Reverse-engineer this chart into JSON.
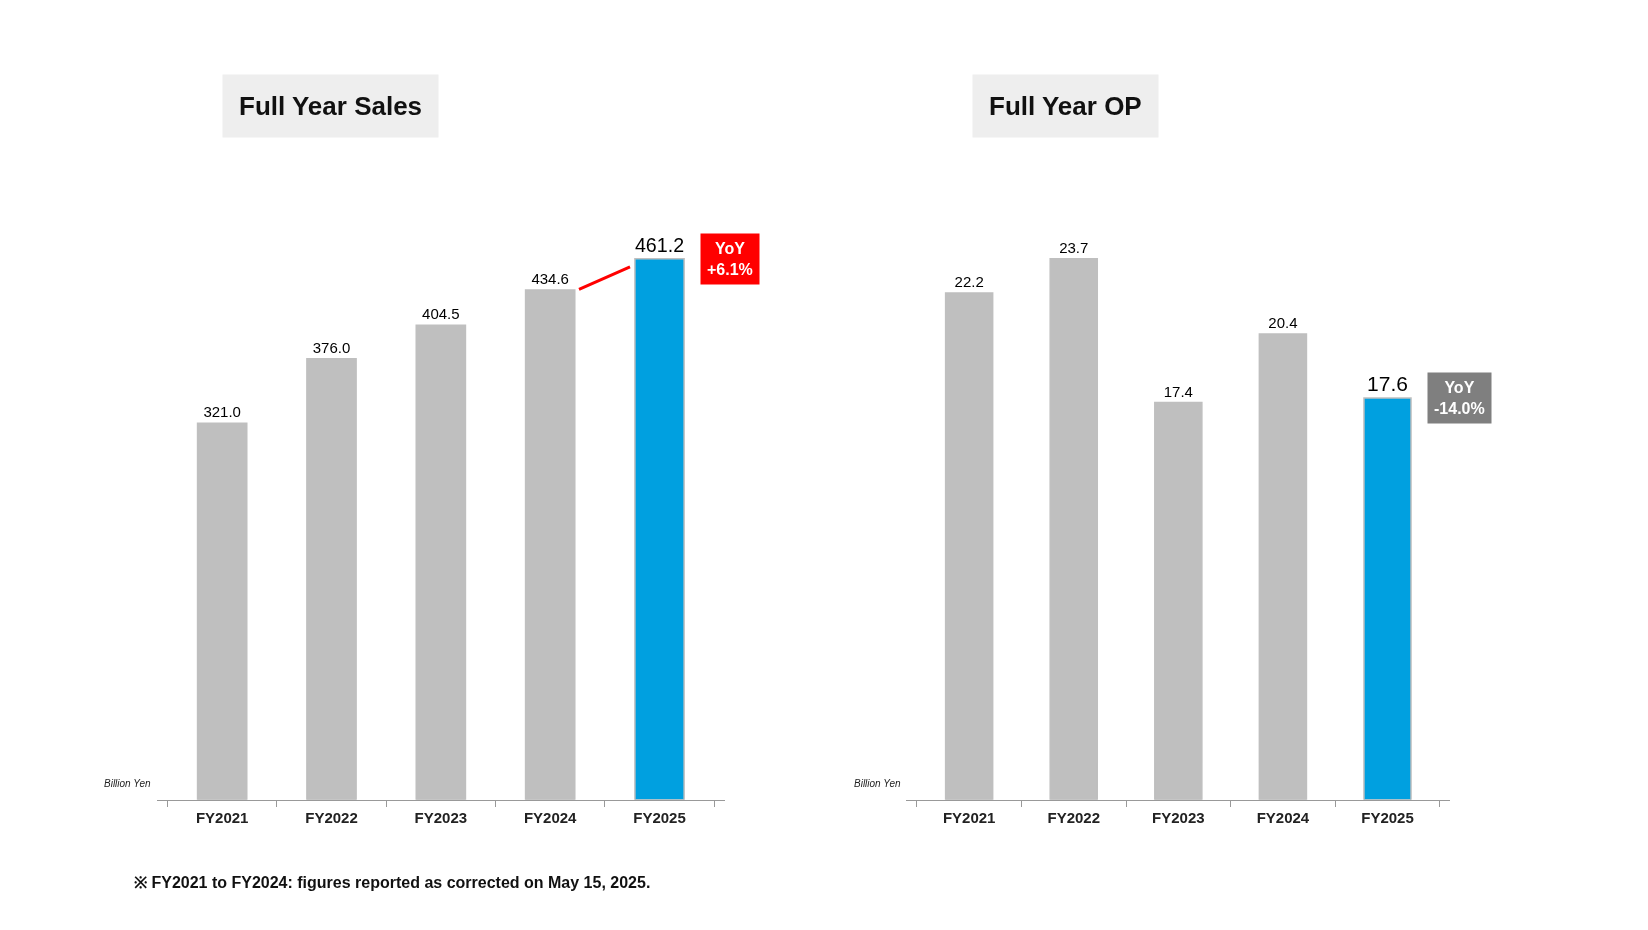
{
  "chart_data": [
    {
      "type": "bar",
      "title": "Full Year Sales",
      "ylabel": "Billion Yen",
      "categories": [
        "FY2021",
        "FY2022",
        "FY2023",
        "FY2024",
        "FY2025"
      ],
      "series": [
        {
          "colors": [
            "#bfbfbf",
            "#bfbfbf",
            "#bfbfbf",
            "#bfbfbf",
            "#00a0e0"
          ],
          "values": [
            321.0,
            376.0,
            404.5,
            434.6,
            461.2
          ],
          "value_labels": [
            "321.0",
            "376.0",
            "404.5",
            "434.6",
            "461.2"
          ]
        }
      ],
      "annotations": [
        {
          "text": "YoY\n+6.1%",
          "x": "FY2025",
          "y": 461.2
        },
        "※ FY2021 to FY2024: figures reported as corrected on May 15, 2025."
      ]
    },
    {
      "type": "bar",
      "title": "Full Year OP",
      "ylabel": "Billion Yen",
      "categories": [
        "FY2021",
        "FY2022",
        "FY2023",
        "FY2024",
        "FY2025"
      ],
      "series": [
        {
          "colors": [
            "#bfbfbf",
            "#bfbfbf",
            "#bfbfbf",
            "#bfbfbf",
            "#00a0e0"
          ],
          "values": [
            22.2,
            23.7,
            17.4,
            20.4,
            17.6
          ]
        }
      ],
      "data_labels": true,
      "annotations": [
        {
          "text": "YoY\n-14.0%",
          "x": "FY2025",
          "y": 17.6
        }
      ]
    }
  ]
}
